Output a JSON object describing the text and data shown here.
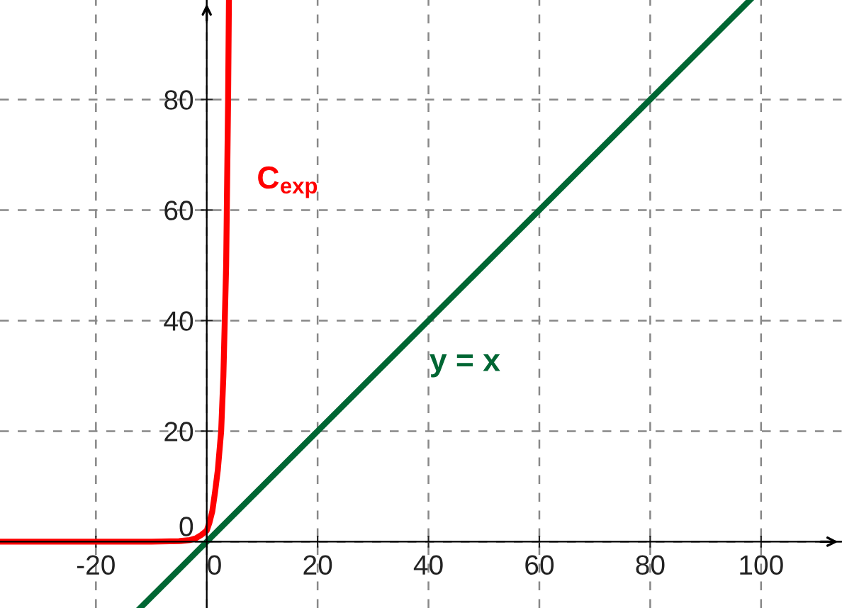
{
  "chart_data": {
    "type": "line",
    "series": [
      {
        "name": "C$_{exp}$",
        "color": "#ff0000",
        "x": [
          -37.3,
          -20,
          -10,
          -5,
          -3,
          -2,
          -1,
          0,
          0.5,
          1,
          1.5,
          2,
          2.6,
          3,
          3.5,
          3.85,
          4.0
        ],
        "values": [
          0,
          0,
          0,
          0.1,
          0.3,
          0.6,
          1.2,
          2,
          3.5,
          5.5,
          9,
          13,
          20,
          30,
          50,
          80,
          98
        ]
      },
      {
        "name": "y = x",
        "color": "#006633",
        "x": [
          -12,
          98
        ],
        "values": [
          -12,
          98
        ]
      }
    ],
    "xlim": [
      -37.3,
      114.6
    ],
    "ylim": [
      -12,
      98
    ],
    "xticks": [
      -20,
      0,
      20,
      40,
      60,
      80,
      100
    ],
    "yticks": [
      0,
      20,
      40,
      60,
      80
    ],
    "grid": true,
    "line_style": "solid",
    "marker": "none",
    "legend": false
  }
}
